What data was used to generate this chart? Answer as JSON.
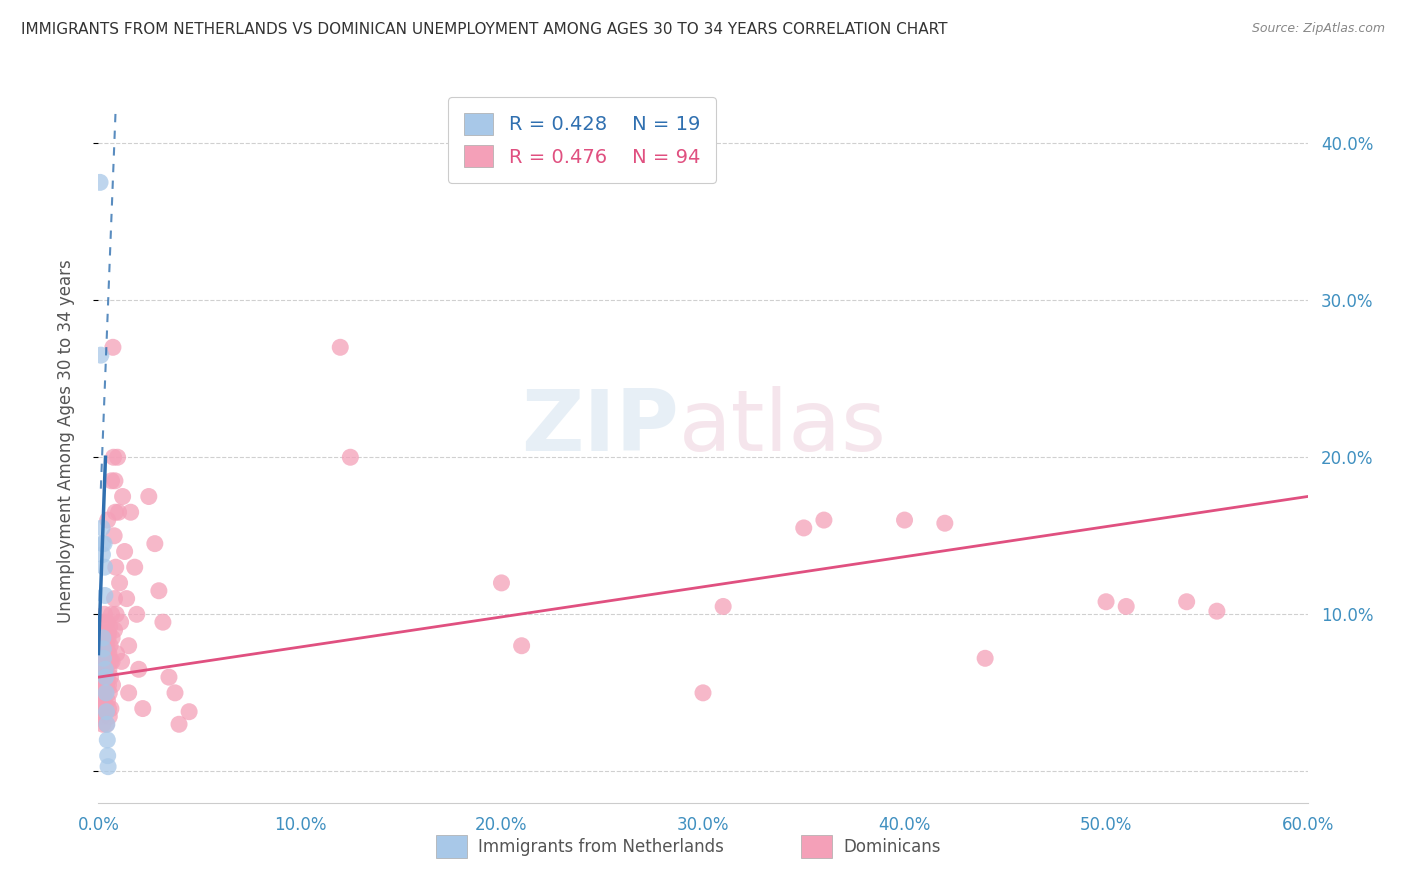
{
  "title": "IMMIGRANTS FROM NETHERLANDS VS DOMINICAN UNEMPLOYMENT AMONG AGES 30 TO 34 YEARS CORRELATION CHART",
  "source": "Source: ZipAtlas.com",
  "ylabel": "Unemployment Among Ages 30 to 34 years",
  "xlim": [
    0.0,
    0.6
  ],
  "ylim": [
    -0.02,
    0.44
  ],
  "xticks": [
    0.0,
    0.1,
    0.2,
    0.3,
    0.4,
    0.5,
    0.6
  ],
  "yticks": [
    0.0,
    0.1,
    0.2,
    0.3,
    0.4
  ],
  "xtick_labels": [
    "0.0%",
    "10.0%",
    "20.0%",
    "30.0%",
    "40.0%",
    "50.0%",
    "60.0%"
  ],
  "ytick_labels_right": [
    "",
    "10.0%",
    "20.0%",
    "30.0%",
    "40.0%"
  ],
  "background_color": "#ffffff",
  "grid_color": "#d0d0d0",
  "blue_color": "#a8c8e8",
  "blue_line_color": "#3070b0",
  "pink_color": "#f4a0b8",
  "pink_line_color": "#e05080",
  "axis_label_color": "#4090c0",
  "watermark": "ZIPatlas",
  "netherlands_points": [
    [
      0.0008,
      0.375
    ],
    [
      0.0012,
      0.265
    ],
    [
      0.0018,
      0.155
    ],
    [
      0.002,
      0.145
    ],
    [
      0.002,
      0.138
    ],
    [
      0.0022,
      0.085
    ],
    [
      0.0024,
      0.078
    ],
    [
      0.0025,
      0.072
    ],
    [
      0.0028,
      0.145
    ],
    [
      0.003,
      0.13
    ],
    [
      0.0032,
      0.112
    ],
    [
      0.0034,
      0.065
    ],
    [
      0.0036,
      0.06
    ],
    [
      0.0038,
      0.05
    ],
    [
      0.004,
      0.038
    ],
    [
      0.0042,
      0.03
    ],
    [
      0.0044,
      0.02
    ],
    [
      0.0046,
      0.01
    ],
    [
      0.0048,
      0.003
    ]
  ],
  "dominican_points": [
    [
      0.0005,
      0.05
    ],
    [
      0.0008,
      0.048
    ],
    [
      0.001,
      0.06
    ],
    [
      0.001,
      0.038
    ],
    [
      0.0012,
      0.072
    ],
    [
      0.0015,
      0.08
    ],
    [
      0.0015,
      0.055
    ],
    [
      0.0018,
      0.068
    ],
    [
      0.0018,
      0.088
    ],
    [
      0.002,
      0.045
    ],
    [
      0.002,
      0.035
    ],
    [
      0.002,
      0.062
    ],
    [
      0.0022,
      0.07
    ],
    [
      0.0022,
      0.05
    ],
    [
      0.0022,
      0.03
    ],
    [
      0.0024,
      0.048
    ],
    [
      0.0025,
      0.095
    ],
    [
      0.0025,
      0.078
    ],
    [
      0.0025,
      0.055
    ],
    [
      0.0026,
      0.065
    ],
    [
      0.0028,
      0.045
    ],
    [
      0.0028,
      0.04
    ],
    [
      0.003,
      0.1
    ],
    [
      0.003,
      0.075
    ],
    [
      0.0032,
      0.082
    ],
    [
      0.0032,
      0.06
    ],
    [
      0.0034,
      0.07
    ],
    [
      0.0034,
      0.04
    ],
    [
      0.0035,
      0.05
    ],
    [
      0.0036,
      0.065
    ],
    [
      0.0036,
      0.08
    ],
    [
      0.0038,
      0.088
    ],
    [
      0.0038,
      0.038
    ],
    [
      0.004,
      0.03
    ],
    [
      0.004,
      0.055
    ],
    [
      0.0042,
      0.095
    ],
    [
      0.0042,
      0.08
    ],
    [
      0.0044,
      0.07
    ],
    [
      0.0044,
      0.06
    ],
    [
      0.0045,
      0.045
    ],
    [
      0.0046,
      0.16
    ],
    [
      0.0048,
      0.085
    ],
    [
      0.0048,
      0.075
    ],
    [
      0.005,
      0.055
    ],
    [
      0.005,
      0.04
    ],
    [
      0.005,
      0.088
    ],
    [
      0.0052,
      0.075
    ],
    [
      0.0052,
      0.065
    ],
    [
      0.0054,
      0.05
    ],
    [
      0.0054,
      0.035
    ],
    [
      0.0056,
      0.092
    ],
    [
      0.0058,
      0.08
    ],
    [
      0.006,
      0.07
    ],
    [
      0.006,
      0.06
    ],
    [
      0.0062,
      0.04
    ],
    [
      0.0065,
      0.185
    ],
    [
      0.0065,
      0.1
    ],
    [
      0.0068,
      0.085
    ],
    [
      0.0068,
      0.07
    ],
    [
      0.007,
      0.055
    ],
    [
      0.0072,
      0.27
    ],
    [
      0.0075,
      0.2
    ],
    [
      0.0078,
      0.15
    ],
    [
      0.008,
      0.11
    ],
    [
      0.008,
      0.09
    ],
    [
      0.0082,
      0.185
    ],
    [
      0.0084,
      0.165
    ],
    [
      0.0086,
      0.13
    ],
    [
      0.0088,
      0.1
    ],
    [
      0.009,
      0.075
    ],
    [
      0.0095,
      0.2
    ],
    [
      0.01,
      0.165
    ],
    [
      0.0105,
      0.12
    ],
    [
      0.011,
      0.095
    ],
    [
      0.0115,
      0.07
    ],
    [
      0.012,
      0.175
    ],
    [
      0.013,
      0.14
    ],
    [
      0.014,
      0.11
    ],
    [
      0.015,
      0.08
    ],
    [
      0.015,
      0.05
    ],
    [
      0.016,
      0.165
    ],
    [
      0.018,
      0.13
    ],
    [
      0.019,
      0.1
    ],
    [
      0.02,
      0.065
    ],
    [
      0.022,
      0.04
    ],
    [
      0.025,
      0.175
    ],
    [
      0.028,
      0.145
    ],
    [
      0.03,
      0.115
    ],
    [
      0.032,
      0.095
    ],
    [
      0.035,
      0.06
    ],
    [
      0.038,
      0.05
    ],
    [
      0.04,
      0.03
    ],
    [
      0.045,
      0.038
    ],
    [
      0.12,
      0.27
    ],
    [
      0.125,
      0.2
    ],
    [
      0.2,
      0.12
    ],
    [
      0.21,
      0.08
    ],
    [
      0.3,
      0.05
    ],
    [
      0.31,
      0.105
    ],
    [
      0.35,
      0.155
    ],
    [
      0.36,
      0.16
    ],
    [
      0.4,
      0.16
    ],
    [
      0.42,
      0.158
    ],
    [
      0.44,
      0.072
    ],
    [
      0.5,
      0.108
    ],
    [
      0.51,
      0.105
    ],
    [
      0.54,
      0.108
    ],
    [
      0.555,
      0.102
    ]
  ],
  "netherlands_trendline_solid": [
    [
      0.0,
      0.075
    ],
    [
      0.0035,
      0.2
    ]
  ],
  "netherlands_trendline_dash": [
    [
      0.0012,
      0.18
    ],
    [
      0.0085,
      0.42
    ]
  ],
  "dominican_trendline": [
    [
      0.0,
      0.06
    ],
    [
      0.6,
      0.175
    ]
  ]
}
